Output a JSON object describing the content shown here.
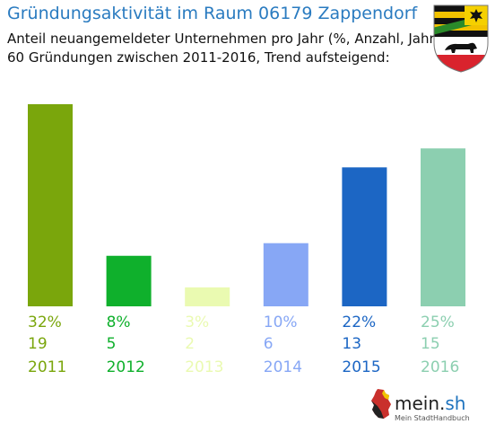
{
  "title": "Gründungsaktivität im Raum 06179 Zappendorf",
  "subtitle_line1": "Anteil neuangemeldeter Unternehmen pro Jahr (%, Anzahl, Jahr)",
  "subtitle_line2": "60 Gründungen zwischen 2011-2016, Trend aufsteigend:",
  "crest_icon": "saxony-anhalt-coat-of-arms-icon",
  "footer": {
    "brand_main": "mein.",
    "brand_accent": "sh",
    "tagline": "Mein StadtHandbuch",
    "logo_icon": "germany-map-icon"
  },
  "chart_data": {
    "type": "bar",
    "categories": [
      "2011",
      "2012",
      "2013",
      "2014",
      "2015",
      "2016"
    ],
    "values": [
      32,
      8,
      3,
      10,
      22,
      25
    ],
    "percent_labels": [
      "32%",
      "8%",
      "3%",
      "10%",
      "22%",
      "25%"
    ],
    "counts": [
      19,
      5,
      2,
      6,
      13,
      15
    ],
    "colors": [
      "#7aa60c",
      "#0fb02c",
      "#eafab1",
      "#87a7f5",
      "#1c66c4",
      "#8ccfb0"
    ],
    "ylim": [
      0,
      32
    ],
    "grid": false
  }
}
